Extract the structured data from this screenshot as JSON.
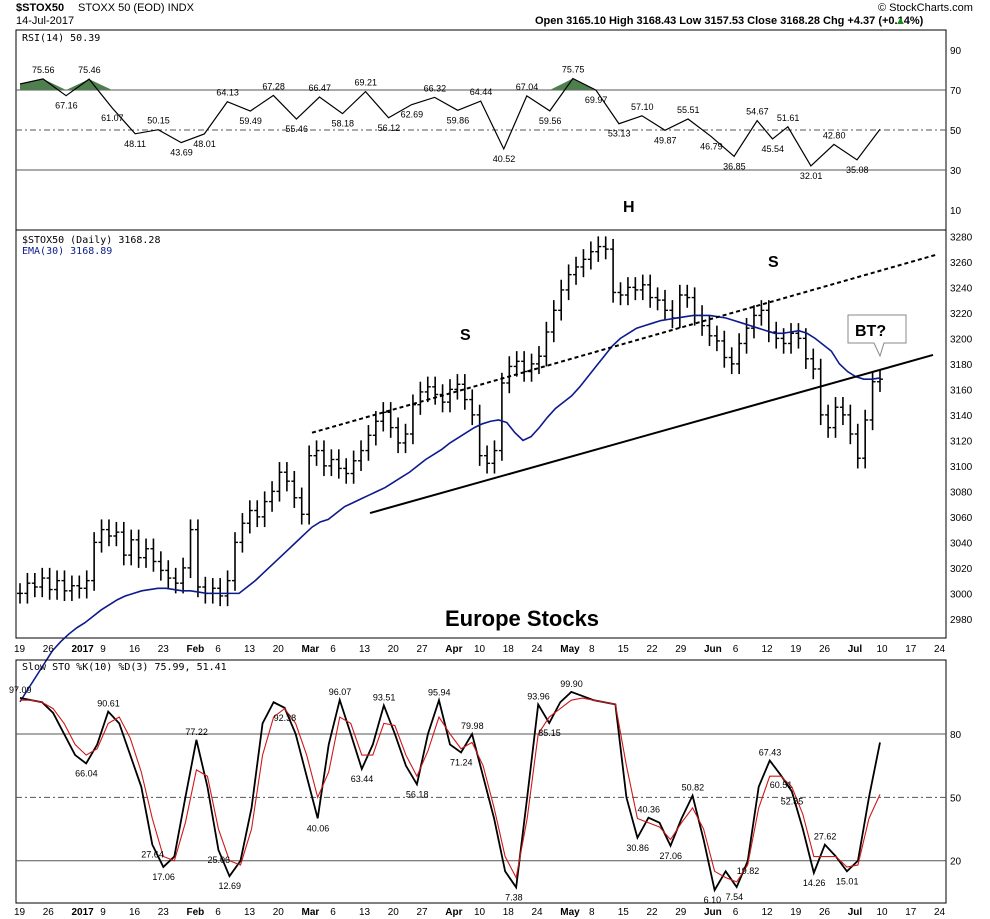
{
  "header": {
    "symbol": "$STOX50",
    "name": "STOXX 50 (EOD) INDX",
    "date": "14-Jul-2017",
    "ohlc": "Open 3165.10  High 3168.43  Low 3157.53  Close 3168.28  Chg +4.37 (+0.14%)",
    "ohlc_arrow": "▲",
    "brand": "© StockCharts.com"
  },
  "colors": {
    "price": "#000000",
    "ema": "#0d1a8c",
    "signal": "#d01818",
    "rsi_fill": "#4f7f4f",
    "grid": "#777777"
  },
  "x_axis": {
    "labels": [
      "19",
      "26",
      "2017",
      "9",
      "16",
      "23",
      "Feb",
      "6",
      "13",
      "20",
      "Mar",
      "6",
      "13",
      "20",
      "27",
      "Apr",
      "10",
      "18",
      "24",
      "May",
      "8",
      "15",
      "22",
      "29",
      "Jun",
      "6",
      "12",
      "19",
      "26",
      "Jul",
      "10",
      "17",
      "24"
    ],
    "bold": [
      "2017",
      "Feb",
      "Mar",
      "Apr",
      "May",
      "Jun",
      "Jul"
    ]
  },
  "chart_data": [
    {
      "type": "line",
      "title": "RSI(14) 50.39",
      "ylim": [
        0,
        100
      ],
      "yticks": [
        10,
        30,
        50,
        70,
        90
      ],
      "levels": [
        30,
        50,
        70
      ],
      "annotations": [
        "75.56",
        "67.16",
        "75.46",
        "61.07",
        "48.11",
        "50.15",
        "43.69",
        "48.01",
        "64.13",
        "59.49",
        "67.28",
        "55.46",
        "66.47",
        "58.18",
        "69.21",
        "56.12",
        "62.69",
        "66.32",
        "59.86",
        "64.44",
        "40.52",
        "67.04",
        "59.56",
        "75.75",
        "69.97",
        "53.13",
        "57.10",
        "49.87",
        "55.51",
        "46.79",
        "36.85",
        "54.67",
        "45.54",
        "51.61",
        "32.01",
        "42.80",
        "35.08"
      ],
      "points": [
        [
          0,
          73
        ],
        [
          3,
          75.56
        ],
        [
          6,
          67.16
        ],
        [
          9,
          75.46
        ],
        [
          12,
          61.07
        ],
        [
          15,
          48.11
        ],
        [
          18,
          50.15
        ],
        [
          21,
          43.69
        ],
        [
          24,
          48.01
        ],
        [
          27,
          64.13
        ],
        [
          30,
          59.49
        ],
        [
          33,
          67.28
        ],
        [
          36,
          55.46
        ],
        [
          39,
          66.47
        ],
        [
          42,
          58.18
        ],
        [
          45,
          69.21
        ],
        [
          48,
          56.12
        ],
        [
          51,
          62.69
        ],
        [
          54,
          66.32
        ],
        [
          57,
          59.86
        ],
        [
          60,
          64.44
        ],
        [
          63,
          40.52
        ],
        [
          66,
          67.04
        ],
        [
          69,
          59.56
        ],
        [
          72,
          75.75
        ],
        [
          75,
          69.97
        ],
        [
          78,
          53.13
        ],
        [
          81,
          57.1
        ],
        [
          84,
          49.87
        ],
        [
          87,
          55.51
        ],
        [
          90,
          46.79
        ],
        [
          93,
          36.85
        ],
        [
          96,
          54.67
        ],
        [
          98,
          45.54
        ],
        [
          100,
          51.61
        ],
        [
          103,
          32.01
        ],
        [
          106,
          42.8
        ],
        [
          109,
          35.08
        ],
        [
          112,
          50.39
        ]
      ]
    },
    {
      "type": "bar",
      "title": "$STOX50 (Daily) 3168.28",
      "legend": "EMA(30) 3168.89",
      "ylim": [
        2965,
        3285
      ],
      "yticks": [
        2980,
        3000,
        3020,
        3040,
        3060,
        3080,
        3100,
        3120,
        3140,
        3160,
        3180,
        3200,
        3220,
        3240,
        3260,
        3280
      ],
      "close": [
        3000,
        3008,
        3005,
        3012,
        3003,
        3010,
        3002,
        3006,
        3004,
        3010,
        3040,
        3050,
        3045,
        3048,
        3030,
        3042,
        3028,
        3035,
        3025,
        3018,
        3012,
        3008,
        3020,
        3050,
        3005,
        3000,
        3004,
        2998,
        3010,
        3040,
        3055,
        3065,
        3060,
        3072,
        3080,
        3095,
        3088,
        3075,
        3062,
        3108,
        3112,
        3100,
        3105,
        3098,
        3094,
        3104,
        3112,
        3124,
        3135,
        3142,
        3130,
        3118,
        3125,
        3148,
        3158,
        3162,
        3156,
        3150,
        3160,
        3164,
        3152,
        3140,
        3108,
        3102,
        3112,
        3165,
        3178,
        3182,
        3174,
        3180,
        3186,
        3205,
        3222,
        3238,
        3250,
        3256,
        3262,
        3268,
        3272,
        3270,
        3236,
        3234,
        3240,
        3238,
        3242,
        3232,
        3230,
        3222,
        3216,
        3234,
        3232,
        3218,
        3210,
        3202,
        3198,
        3185,
        3180,
        3196,
        3208,
        3218,
        3222,
        3205,
        3200,
        3196,
        3204,
        3200,
        3184,
        3176,
        3140,
        3130,
        3146,
        3140,
        3125,
        3106,
        3136,
        3166,
        3168
      ],
      "ema": [
        2915,
        2925,
        2935,
        2945,
        2955,
        2962,
        2968,
        2973,
        2977,
        2982,
        2987,
        2991,
        2995,
        2998,
        3000,
        3002,
        3003,
        3004,
        3004,
        3003,
        3002,
        3002,
        3001,
        3000,
        3000,
        3000,
        3000,
        3000,
        3005,
        3010,
        3016,
        3022,
        3028,
        3034,
        3040,
        3046,
        3052,
        3056,
        3058,
        3063,
        3068,
        3071,
        3074,
        3077,
        3080,
        3083,
        3087,
        3091,
        3095,
        3100,
        3105,
        3109,
        3113,
        3118,
        3122,
        3126,
        3130,
        3133,
        3135,
        3136,
        3134,
        3126,
        3120,
        3123,
        3130,
        3138,
        3145,
        3150,
        3155,
        3162,
        3170,
        3178,
        3186,
        3194,
        3200,
        3204,
        3208,
        3210,
        3212,
        3214,
        3215,
        3216,
        3217,
        3218,
        3218,
        3218,
        3217,
        3216,
        3214,
        3212,
        3210,
        3208,
        3206,
        3204,
        3204,
        3205,
        3206,
        3204,
        3200,
        3195,
        3190,
        3180,
        3174,
        3170,
        3168,
        3168,
        3169
      ],
      "annotations": {
        "left_shoulder": "S",
        "head": "H",
        "right_shoulder": "S",
        "backtest": "BT?",
        "title": "Europe Stocks"
      }
    },
    {
      "type": "line",
      "title": "Slow STO %K(10) %D(3) 75.99, 51.41",
      "ylim": [
        0,
        115
      ],
      "yticks": [
        20,
        50,
        80
      ],
      "levels": [
        20,
        50,
        80
      ],
      "series": [
        {
          "name": "%K(10)",
          "values": [
            97.09,
            96,
            95,
            90,
            80,
            70,
            66.04,
            75,
            90.61,
            85,
            70,
            55,
            27.64,
            17.06,
            22,
            50,
            77.22,
            55,
            25.06,
            12.69,
            20,
            45,
            85,
            95,
            92.38,
            80,
            60,
            40.06,
            75,
            96.07,
            80,
            63.44,
            75,
            93.51,
            80,
            65,
            56.18,
            80,
            95.94,
            75,
            71.24,
            79.98,
            60,
            40,
            15,
            7.38,
            50,
            93.96,
            85.15,
            95,
            99.9,
            98,
            96,
            95,
            94,
            50,
            30.86,
            40.36,
            38,
            27.06,
            40,
            50.82,
            30,
            6.1,
            15,
            7.54,
            19.82,
            55,
            67.43,
            60.51,
            52.85,
            35,
            14.26,
            27.62,
            22,
            15.01,
            20,
            50,
            75.99
          ]
        },
        {
          "name": "%D(3)",
          "values": [
            96,
            96,
            95,
            92,
            85,
            75,
            70,
            73,
            85,
            88,
            78,
            62,
            40,
            22,
            20,
            38,
            63,
            60,
            35,
            20,
            18,
            35,
            70,
            88,
            92,
            85,
            70,
            50,
            62,
            88,
            85,
            70,
            70,
            85,
            84,
            70,
            60,
            72,
            88,
            80,
            73,
            76,
            65,
            45,
            22,
            12,
            40,
            80,
            88,
            92,
            96,
            97,
            96,
            95,
            94,
            65,
            40,
            38,
            36,
            30,
            38,
            45,
            35,
            15,
            12,
            10,
            18,
            45,
            60,
            60,
            55,
            42,
            22,
            22,
            22,
            17,
            18,
            40,
            51.41
          ]
        }
      ],
      "annotations": [
        "97.09",
        "90.61",
        "66.04",
        "27.64",
        "17.06",
        "77.22",
        "25.06",
        "12.69",
        "92.38",
        "40.06",
        "96.07",
        "63.44",
        "93.51",
        "56.18",
        "95.94",
        "71.24",
        "79.98",
        "7.38",
        "93.96",
        "85.15",
        "99.90",
        "30.86",
        "40.36",
        "27.06",
        "50.82",
        "6.10",
        "7.54",
        "19.82",
        "67.43",
        "60.51",
        "52.85",
        "14.26",
        "27.62",
        "15.01"
      ]
    }
  ]
}
